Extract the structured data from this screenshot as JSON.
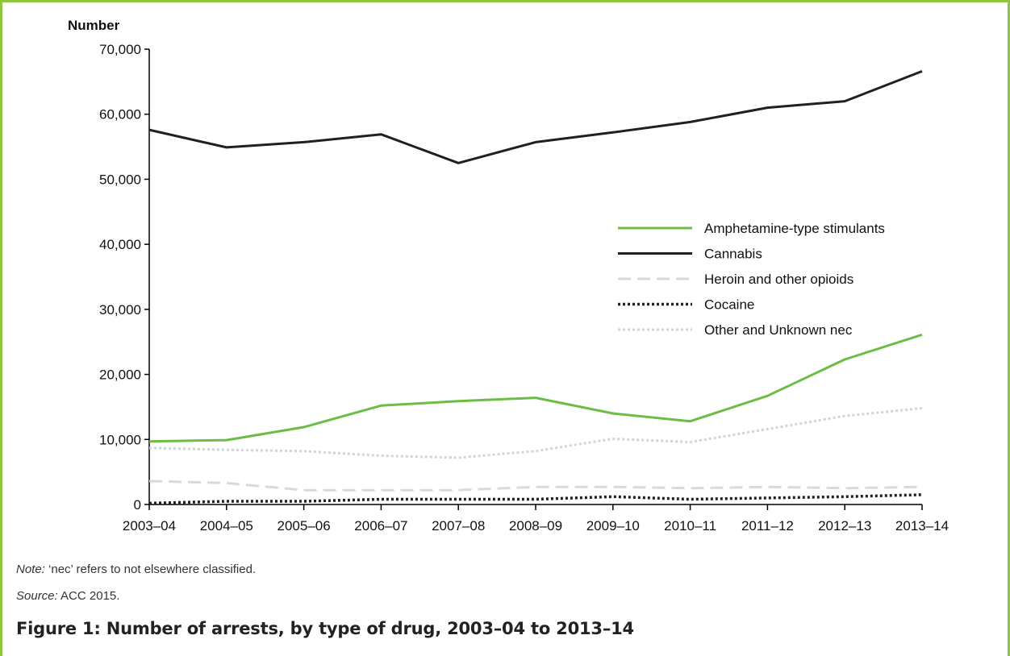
{
  "chart_data": {
    "type": "line",
    "ylabel": "Number",
    "xlabel": "",
    "ylim": [
      0,
      70000
    ],
    "yticks": [
      "0",
      "10,000",
      "20,000",
      "30,000",
      "40,000",
      "50,000",
      "60,000",
      "70,000"
    ],
    "categories": [
      "2003–04",
      "2004–05",
      "2005–06",
      "2006–07",
      "2007–08",
      "2008–09",
      "2009–10",
      "2010–11",
      "2011–12",
      "2012–13",
      "2013–14"
    ],
    "series": [
      {
        "name": "Amphetamine-type stimulants",
        "color": "#6cbd45",
        "style": "solid",
        "values": [
          9700,
          9900,
          11900,
          15200,
          15900,
          16400,
          14000,
          12800,
          16700,
          22300,
          26100
        ]
      },
      {
        "name": "Cannabis",
        "color": "#231f20",
        "style": "solid",
        "values": [
          57600,
          54900,
          55700,
          56900,
          52500,
          55700,
          57200,
          58800,
          61000,
          62000,
          66600
        ]
      },
      {
        "name": "Heroin and other opioids",
        "color": "#d9d9d9",
        "style": "longdash",
        "values": [
          3600,
          3300,
          2200,
          2200,
          2200,
          2700,
          2700,
          2500,
          2700,
          2500,
          2700
        ]
      },
      {
        "name": "Cocaine",
        "color": "#231f20",
        "style": "dotted",
        "values": [
          200,
          500,
          500,
          800,
          800,
          800,
          1200,
          800,
          1000,
          1200,
          1500
        ]
      },
      {
        "name": "Other and Unknown nec",
        "color": "#d4d4d4",
        "style": "dotted",
        "values": [
          8700,
          8400,
          8200,
          7500,
          7200,
          8200,
          10100,
          9600,
          11600,
          13600,
          14800
        ]
      }
    ],
    "legend": "right"
  },
  "note": {
    "label": "Note:",
    "text": "‘nec’ refers to not elsewhere classified."
  },
  "source": {
    "label": "Source:",
    "text": "ACC 2015."
  },
  "caption": "Figure 1: Number of arrests, by type of drug, 2003–04 to 2013–14"
}
